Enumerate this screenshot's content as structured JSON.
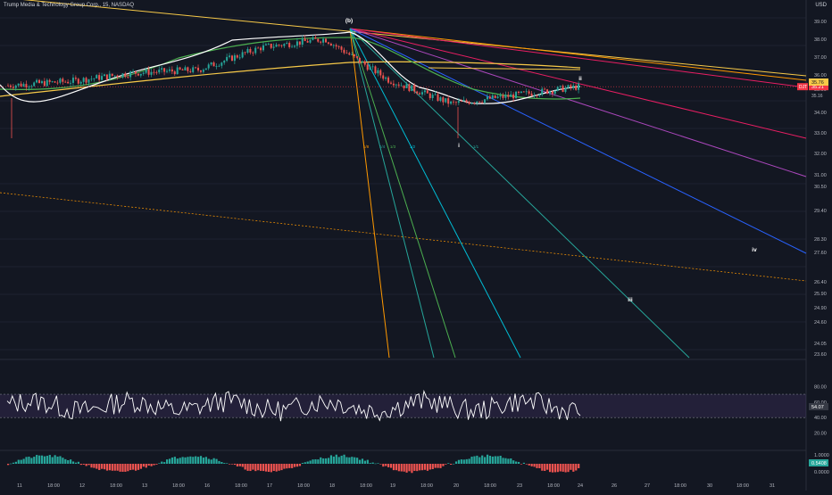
{
  "header": {
    "symbol_title": "Trump Media & Technology Group Corp., 15, NASDAQ",
    "currency": "USD"
  },
  "colors": {
    "background": "#131722",
    "up": "#26a69a",
    "down": "#ef5350",
    "price_tag": "#f23645",
    "yellow_tag": "#f7c948",
    "rsi_line": "#ffffff",
    "rsi_band": "#7e57c2"
  },
  "chart_data": [
    {
      "type": "candlestick",
      "title": "",
      "y_axis_ticks": [
        "39.00",
        "38.00",
        "37.00",
        "36.00",
        "35.00",
        "34.00",
        "33.00",
        "32.00",
        "31.00",
        "30.50",
        "29.40",
        "28.30",
        "27.60",
        "26.40",
        "25.90",
        "24.90",
        "24.60",
        "24.05",
        "23.60"
      ],
      "x_axis_ticks": [
        "11",
        "18:00",
        "12",
        "18:00",
        "13",
        "18:00",
        "16",
        "18:00",
        "17",
        "18:00",
        "18",
        "18:00",
        "19",
        "18:00",
        "20",
        "18:00",
        "23",
        "18:00",
        "24",
        "26",
        "27",
        "18:00",
        "30",
        "18:00",
        "31"
      ],
      "last_price": "35.21",
      "last_price_label": "DJT",
      "price_tag_secondary": "35.76",
      "price_tag_small": "35.16",
      "wave_labels": [
        "(b)",
        "i",
        "ii",
        "iii",
        "iv"
      ],
      "fan_labels": [
        "1/8",
        "1/4",
        "1/3",
        "1/2",
        "1/1"
      ],
      "approx_ohlc_path": [
        {
          "session": "11",
          "close": 35.3
        },
        {
          "session": "12",
          "close": 35.6
        },
        {
          "session": "13",
          "close": 36.2
        },
        {
          "session": "16",
          "close": 36.4
        },
        {
          "session": "17",
          "close": 38.0
        },
        {
          "session": "18",
          "close": 38.6
        },
        {
          "session": "19",
          "close": 35.7
        },
        {
          "session": "20",
          "close": 34.0
        },
        {
          "session": "23",
          "close": 34.6
        },
        {
          "session": "24",
          "close": 35.21
        }
      ]
    },
    {
      "type": "line",
      "title": "",
      "name": "",
      "y_axis_ticks": [
        "80.00",
        "60.00",
        "54.07",
        "40.00",
        "20.00"
      ],
      "value_tag": "54.07",
      "band": [
        40,
        70
      ]
    },
    {
      "type": "bar",
      "title": "",
      "y_axis_ticks": [
        "1.0000",
        "0.0000"
      ],
      "value_tag": "0.5408"
    }
  ]
}
